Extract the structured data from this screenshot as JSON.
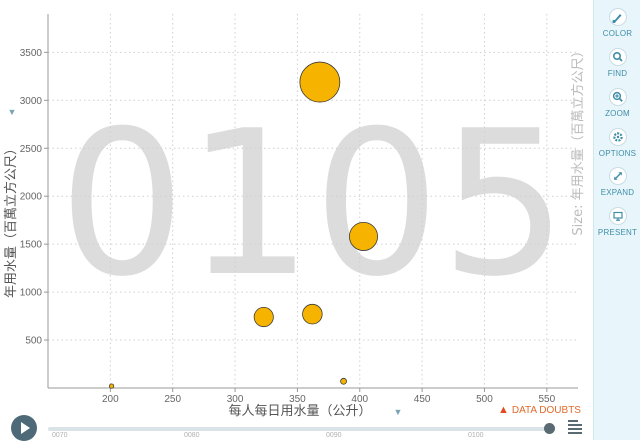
{
  "chart_data": {
    "type": "scatter",
    "background_label": "0105",
    "xlabel": "每人每日用水量（公升）",
    "ylabel": "年用水量（百萬立方公尺）",
    "size_label": "Size: 年用水量（百萬立方公尺）",
    "xlim": [
      150,
      575
    ],
    "ylim": [
      0,
      3900
    ],
    "x_ticks": [
      200,
      250,
      300,
      350,
      400,
      450,
      500,
      550
    ],
    "y_ticks": [
      500,
      1000,
      1500,
      2000,
      2500,
      3000,
      3500
    ],
    "grid": true,
    "bubble_color": "#f6b400",
    "points": [
      {
        "x": 201,
        "y": 20
      },
      {
        "x": 323,
        "y": 740
      },
      {
        "x": 362,
        "y": 770
      },
      {
        "x": 368,
        "y": 3190
      },
      {
        "x": 387,
        "y": 70
      },
      {
        "x": 403,
        "y": 1580
      }
    ]
  },
  "toolbar": {
    "items": [
      {
        "label": "COLOR",
        "icon": "brush-icon"
      },
      {
        "label": "FIND",
        "icon": "search-icon"
      },
      {
        "label": "ZOOM",
        "icon": "zoom-icon"
      },
      {
        "label": "OPTIONS",
        "icon": "gear-icon"
      },
      {
        "label": "EXPAND",
        "icon": "expand-icon"
      },
      {
        "label": "PRESENT",
        "icon": "present-icon"
      }
    ]
  },
  "data_doubts": "DATA DOUBTS",
  "timeslider": {
    "labels": [
      "0070",
      "0080",
      "0090",
      "0100"
    ],
    "value_fraction": 1.0
  }
}
